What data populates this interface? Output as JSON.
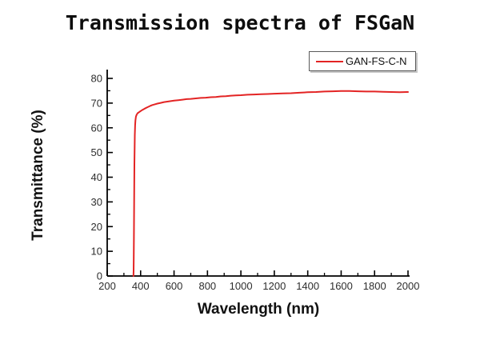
{
  "title": "Transmission spectra of FSGaN",
  "legend": {
    "label": "GAN-FS-C-N"
  },
  "colors": {
    "background": "#ffffff",
    "axis": "#000000",
    "tick_label": "#2e2e2e",
    "curve": "#e32424"
  },
  "chart_data": {
    "type": "line",
    "title": "Transmission spectra of FSGaN",
    "xlabel": "Wavelength (nm)",
    "ylabel": "Transmittance (%)",
    "xlim": [
      200,
      2000
    ],
    "ylim": [
      0,
      80
    ],
    "x_ticks": [
      200,
      400,
      600,
      800,
      1000,
      1200,
      1400,
      1600,
      1800,
      2000
    ],
    "y_ticks": [
      0,
      10,
      20,
      30,
      40,
      50,
      60,
      70,
      80
    ],
    "x_minor_step": 100,
    "y_minor_step": 5,
    "grid": false,
    "legend_position": "top-right",
    "series": [
      {
        "name": "GAN-FS-C-N",
        "color": "#e32424",
        "points": [
          [
            357,
            0
          ],
          [
            358,
            2
          ],
          [
            359,
            8
          ],
          [
            360,
            16
          ],
          [
            361,
            26
          ],
          [
            362,
            36
          ],
          [
            363,
            45
          ],
          [
            364,
            52
          ],
          [
            365,
            57
          ],
          [
            367,
            61
          ],
          [
            369,
            63
          ],
          [
            372,
            64.5
          ],
          [
            376,
            65.3
          ],
          [
            382,
            65.9
          ],
          [
            390,
            66.3
          ],
          [
            400,
            66.8
          ],
          [
            412,
            67.3
          ],
          [
            425,
            67.8
          ],
          [
            440,
            68.3
          ],
          [
            455,
            68.8
          ],
          [
            470,
            69.2
          ],
          [
            485,
            69.5
          ],
          [
            500,
            69.8
          ],
          [
            520,
            70.1
          ],
          [
            540,
            70.4
          ],
          [
            560,
            70.6
          ],
          [
            580,
            70.8
          ],
          [
            600,
            71.0
          ],
          [
            625,
            71.2
          ],
          [
            650,
            71.4
          ],
          [
            675,
            71.6
          ],
          [
            700,
            71.7
          ],
          [
            730,
            71.9
          ],
          [
            760,
            72.1
          ],
          [
            790,
            72.2
          ],
          [
            820,
            72.4
          ],
          [
            850,
            72.5
          ],
          [
            880,
            72.7
          ],
          [
            910,
            72.8
          ],
          [
            940,
            73.0
          ],
          [
            970,
            73.1
          ],
          [
            1000,
            73.2
          ],
          [
            1040,
            73.4
          ],
          [
            1080,
            73.5
          ],
          [
            1120,
            73.6
          ],
          [
            1160,
            73.7
          ],
          [
            1200,
            73.8
          ],
          [
            1250,
            73.9
          ],
          [
            1300,
            74.0
          ],
          [
            1350,
            74.2
          ],
          [
            1400,
            74.4
          ],
          [
            1450,
            74.5
          ],
          [
            1500,
            74.7
          ],
          [
            1550,
            74.8
          ],
          [
            1600,
            74.9
          ],
          [
            1650,
            74.9
          ],
          [
            1700,
            74.8
          ],
          [
            1750,
            74.7
          ],
          [
            1800,
            74.7
          ],
          [
            1850,
            74.6
          ],
          [
            1900,
            74.5
          ],
          [
            1950,
            74.4
          ],
          [
            2000,
            74.5
          ]
        ]
      }
    ]
  }
}
